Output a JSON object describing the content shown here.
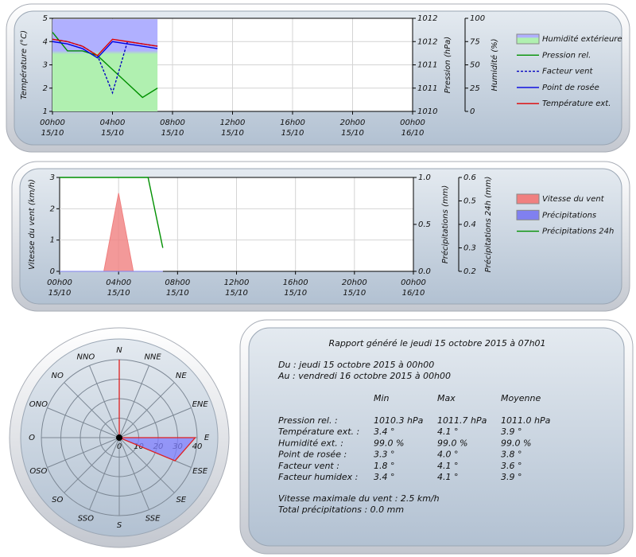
{
  "chart_data": [
    {
      "type": "line",
      "x": [
        0,
        1,
        2,
        3,
        4,
        5,
        6,
        7
      ],
      "xlim": [
        0,
        24
      ],
      "xticks": [
        {
          "value": 0,
          "label": [
            "00h00",
            "15/10"
          ]
        },
        {
          "value": 4,
          "label": [
            "04h00",
            "15/10"
          ]
        },
        {
          "value": 8,
          "label": [
            "08h00",
            "15/10"
          ]
        },
        {
          "value": 12,
          "label": [
            "12h00",
            "15/10"
          ]
        },
        {
          "value": 16,
          "label": [
            "16h00",
            "15/10"
          ]
        },
        {
          "value": 20,
          "label": [
            "20h00",
            "15/10"
          ]
        },
        {
          "value": 24,
          "label": [
            "00h00",
            "16/10"
          ]
        }
      ],
      "ylabel": "Température (°C)",
      "ylim": [
        1,
        5
      ],
      "yticks": [
        1,
        2,
        3,
        4,
        5
      ],
      "y2label": "Pression (hPa)",
      "y2lim": [
        1010,
        1012
      ],
      "y2ticks": [
        1010,
        {
          "value": 1010.5,
          "label": "1011"
        },
        1011,
        {
          "value": 1011.5,
          "label": "1012"
        },
        1012
      ],
      "y3label": "Humidité (%)",
      "y3lim": [
        0,
        100
      ],
      "y3ticks": [
        0,
        25,
        50,
        75,
        100
      ],
      "grid": true,
      "legend": "right",
      "series": [
        {
          "name": "Humidité extérieure",
          "style": "area",
          "axis": "y3",
          "colors": [
            "#b0b0ff",
            "#b0f0b0"
          ],
          "values": [
            99,
            99,
            99,
            99,
            99,
            99,
            99,
            99
          ]
        },
        {
          "name": "Pression rel.",
          "style": "line",
          "axis": "y2",
          "color": "#009000",
          "values": [
            1011.7,
            1011.3,
            1011.3,
            1011.2,
            1010.9,
            1010.6,
            1010.3,
            1010.5
          ]
        },
        {
          "name": "Facteur vent",
          "style": "line",
          "axis": "y",
          "color": "#0000c0",
          "dash": "dotted",
          "values": [
            4.1,
            4.0,
            3.8,
            3.4,
            1.8,
            4.0,
            3.9,
            3.8
          ]
        },
        {
          "name": "Point de rosée",
          "style": "line",
          "axis": "y",
          "color": "#0000e0",
          "values": [
            4.0,
            3.9,
            3.7,
            3.3,
            4.0,
            3.9,
            3.8,
            3.7
          ]
        },
        {
          "name": "Température ext.",
          "style": "line",
          "axis": "y",
          "color": "#e00000",
          "values": [
            4.1,
            4.0,
            3.8,
            3.4,
            4.1,
            4.0,
            3.9,
            3.8
          ]
        }
      ]
    },
    {
      "type": "line",
      "x": [
        0,
        1,
        2,
        3,
        4,
        5,
        6,
        7
      ],
      "xlim": [
        0,
        24
      ],
      "xticks": [
        {
          "value": 0,
          "label": [
            "00h00",
            "15/10"
          ]
        },
        {
          "value": 4,
          "label": [
            "04h00",
            "15/10"
          ]
        },
        {
          "value": 8,
          "label": [
            "08h00",
            "15/10"
          ]
        },
        {
          "value": 12,
          "label": [
            "12h00",
            "15/10"
          ]
        },
        {
          "value": 16,
          "label": [
            "16h00",
            "15/10"
          ]
        },
        {
          "value": 20,
          "label": [
            "20h00",
            "15/10"
          ]
        },
        {
          "value": 24,
          "label": [
            "00h00",
            "16/10"
          ]
        }
      ],
      "ylabel": "Vitesse du vent (km/h)",
      "ylim": [
        0,
        3
      ],
      "yticks": [
        0,
        1,
        2,
        3
      ],
      "y2label": "Précipitations (mm)",
      "y2lim": [
        0,
        1
      ],
      "y2ticks": [
        {
          "value": 0,
          "label": "0.0"
        },
        {
          "value": 0.5,
          "label": "0.5"
        },
        {
          "value": 1,
          "label": "1.0"
        }
      ],
      "y3label": "Précipitations 24h (mm)",
      "y3lim": [
        0.2,
        0.6
      ],
      "y3ticks": [
        0.2,
        0.3,
        0.4,
        0.5,
        0.6
      ],
      "grid": true,
      "legend": "right",
      "series": [
        {
          "name": "Vitesse du vent",
          "style": "area",
          "axis": "y",
          "color": "#f08080",
          "values": [
            0,
            0,
            0,
            0,
            2.5,
            0,
            0,
            0
          ]
        },
        {
          "name": "Précipitations",
          "style": "area",
          "axis": "y2",
          "color": "#8080f0",
          "values": [
            0,
            0,
            0,
            0,
            0,
            0,
            0,
            0
          ]
        },
        {
          "name": "Précipitations 24h",
          "style": "line",
          "axis": "y3",
          "color": "#009000",
          "values": [
            0.6,
            0.6,
            0.6,
            0.6,
            0.6,
            0.6,
            0.6,
            0.3
          ]
        }
      ]
    },
    {
      "type": "polar",
      "categories": [
        "N",
        "NNE",
        "NE",
        "ENE",
        "E",
        "ESE",
        "SE",
        "SSE",
        "S",
        "SSO",
        "SO",
        "OSO",
        "O",
        "ONO",
        "NO",
        "NNO"
      ],
      "rlim": [
        0,
        40
      ],
      "rticks": [
        0,
        10,
        20,
        30,
        40
      ],
      "series": [
        {
          "color": "#e02020",
          "fill": "#8080ff",
          "values": [
            40,
            0,
            0,
            0,
            39,
            31,
            0,
            0,
            0,
            0,
            0,
            0,
            0,
            0,
            0,
            0
          ]
        }
      ]
    }
  ],
  "report": {
    "title": "Rapport généré le jeudi 15 octobre 2015 à 07h01",
    "period": [
      "Du : jeudi 15 octobre 2015 à 00h00",
      "Au : vendredi 16 octobre 2015 à 00h00"
    ],
    "header": [
      "Min",
      "Max",
      "Moyenne"
    ],
    "rows": [
      [
        "Pression rel. :",
        "1010.3 hPa",
        "1011.7 hPa",
        "1011.0 hPa"
      ],
      [
        "Température ext. :",
        "3.4 °",
        "4.1 °",
        "3.9 °"
      ],
      [
        "Humidité ext. :",
        "99.0 %",
        "99.0 %",
        "99.0 %"
      ],
      [
        "Point de rosée :",
        "3.3 °",
        "4.0 °",
        "3.8 °"
      ],
      [
        "Facteur vent :",
        "1.8 °",
        "4.1 °",
        "3.6 °"
      ],
      [
        "Facteur humidex :",
        "3.4 °",
        "4.1 °",
        "3.9 °"
      ]
    ],
    "summary": [
      "Vitesse maximale du vent : 2.5 km/h",
      "Total précipitations : 0.0 mm"
    ]
  }
}
